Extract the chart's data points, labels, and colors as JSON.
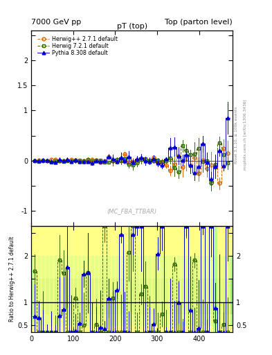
{
  "title_left": "7000 GeV pp",
  "title_right": "Top (parton level)",
  "main_title": "pT (top)",
  "watermark": "(MC_FBA_TTBAR)",
  "right_label1": "Rivet 3.1.10, ≥ 100k events",
  "right_label2": "mcplots.cern.ch [arXiv:1306.3436]",
  "ylabel_ratio": "Ratio to Herwig++ 2.7.1 default",
  "xlim": [
    0,
    480
  ],
  "ylim_main": [
    -1.3,
    2.6
  ],
  "ylim_ratio": [
    0.35,
    2.65
  ],
  "legend_entries": [
    "Herwig++ 2.7.1 default",
    "Herwig 7.2.1 default",
    "Pythia 8.308 default"
  ],
  "herwig_color": "#dd6600",
  "herwig7_color": "#336600",
  "pythia_color": "#0000cc",
  "bg_yellow": "#ffff88",
  "bg_green_light": "#aaff88",
  "bg_green_dark": "#55cc55"
}
